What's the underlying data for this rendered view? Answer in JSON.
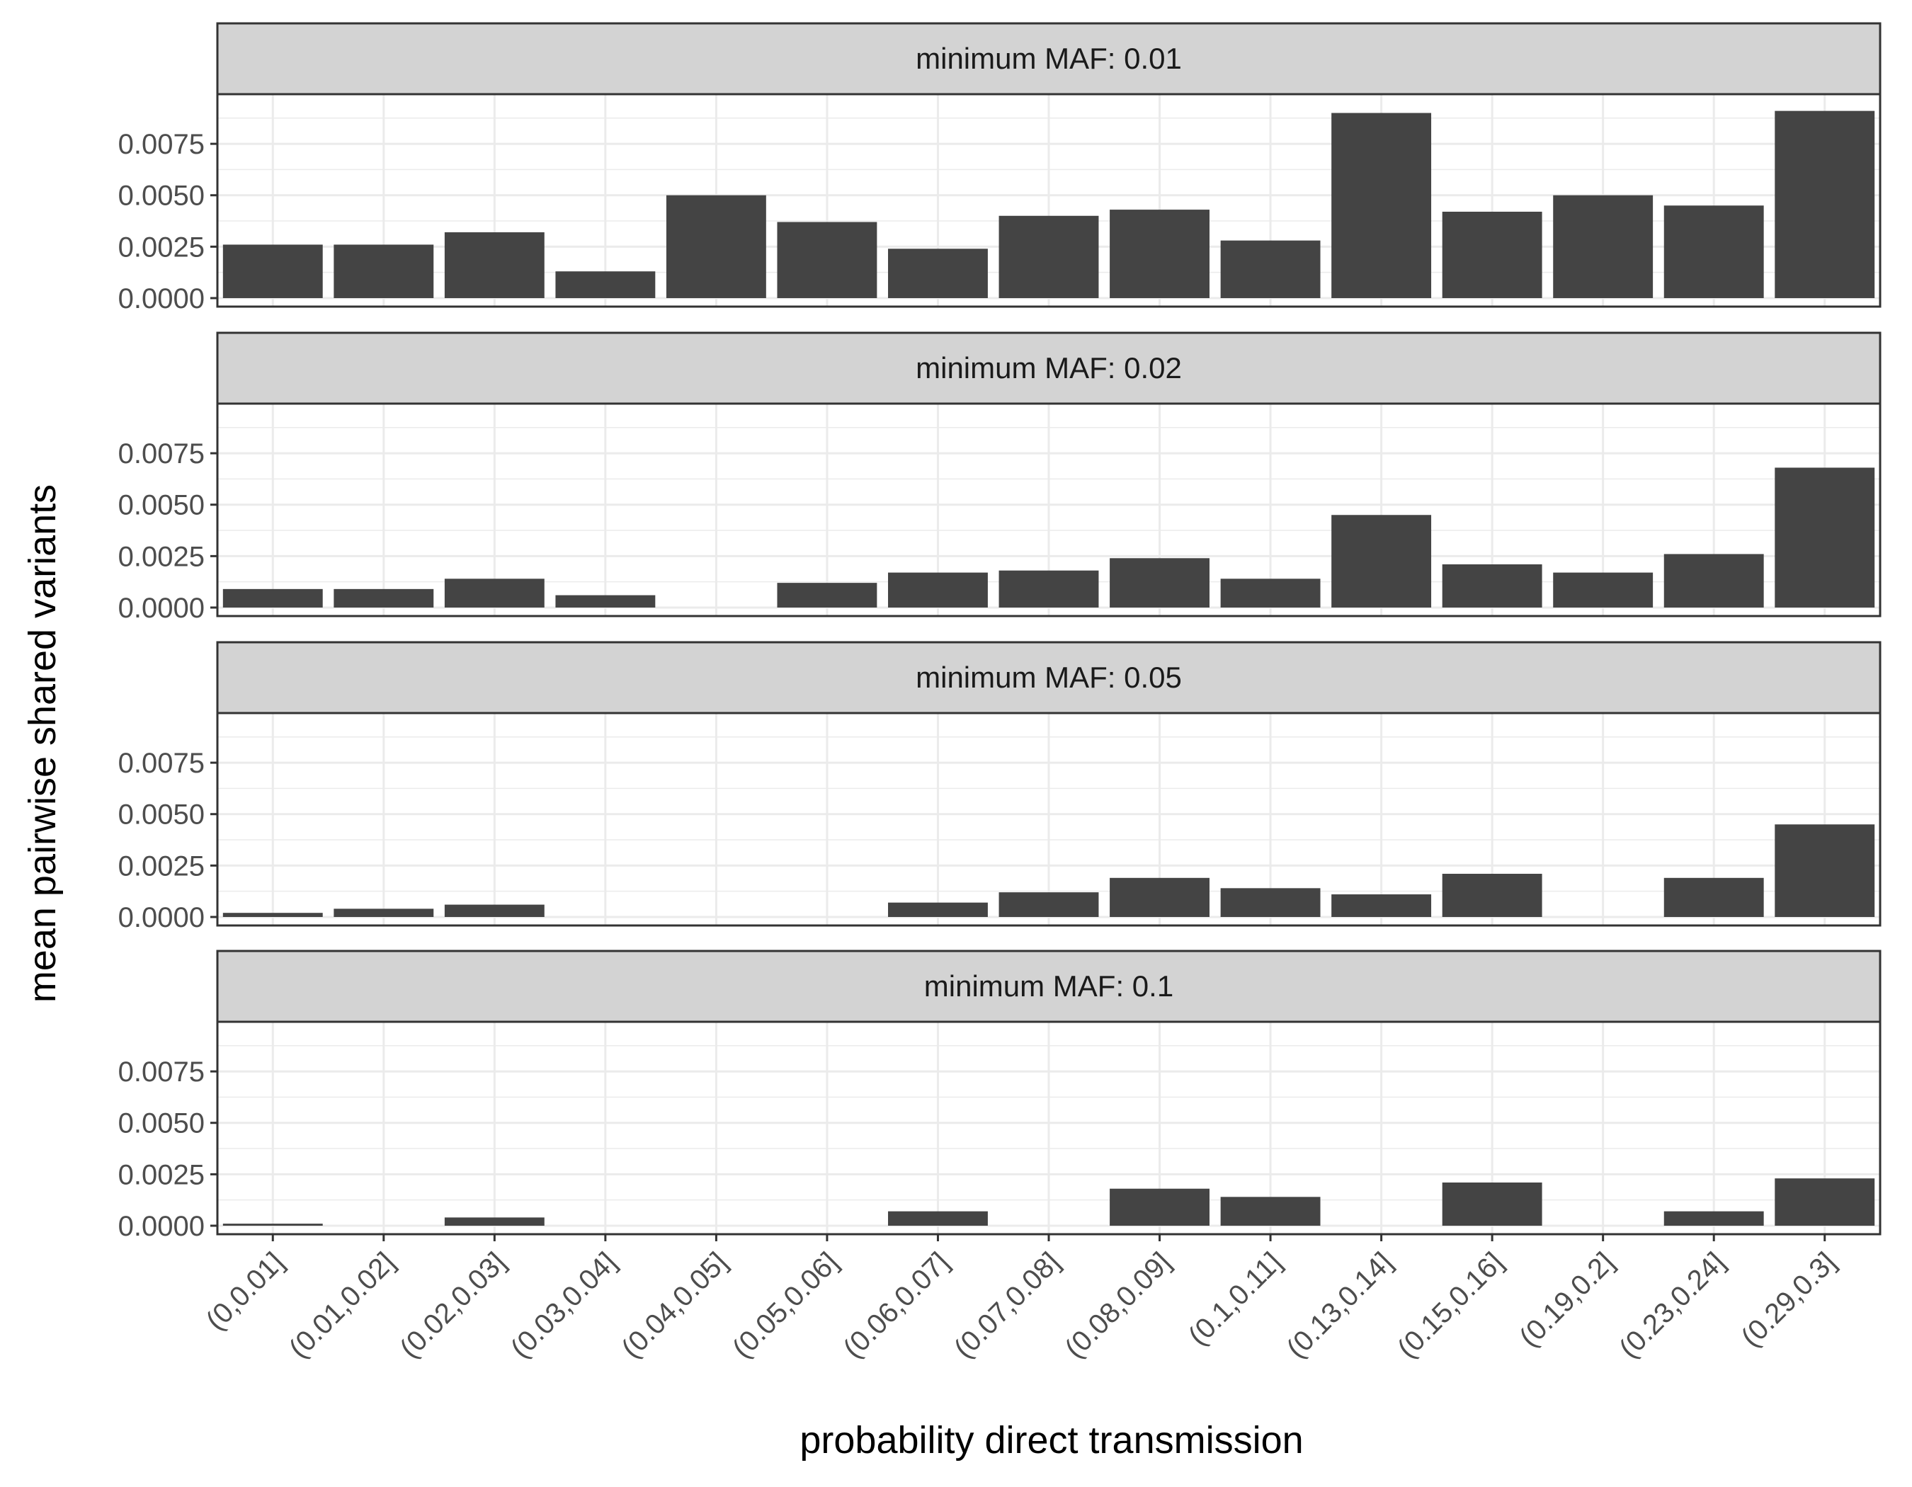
{
  "chart_data": {
    "type": "bar",
    "xlabel": "probability direct transmission",
    "ylabel": "mean pairwise shared variants",
    "ylim": [
      0,
      0.0095
    ],
    "yticks": [
      "0.0000",
      "0.0025",
      "0.0050",
      "0.0075"
    ],
    "categories": [
      "(0,0.01]",
      "(0.01,0.02]",
      "(0.02,0.03]",
      "(0.03,0.04]",
      "(0.04,0.05]",
      "(0.05,0.06]",
      "(0.06,0.07]",
      "(0.07,0.08]",
      "(0.08,0.09]",
      "(0.1,0.11]",
      "(0.13,0.14]",
      "(0.15,0.16]",
      "(0.19,0.2]",
      "(0.23,0.24]",
      "(0.29,0.3]"
    ],
    "grid": true,
    "bar_color": "#444444",
    "strip_color": "#d3d3d3",
    "panels": [
      {
        "label": "minimum MAF: 0.01",
        "values": [
          0.0026,
          0.0026,
          0.0032,
          0.0013,
          0.005,
          0.0037,
          0.0024,
          0.004,
          0.0043,
          0.0028,
          0.009,
          0.0042,
          0.005,
          0.0045,
          0.0091
        ]
      },
      {
        "label": "minimum MAF: 0.02",
        "values": [
          0.0009,
          0.0009,
          0.0014,
          0.0006,
          0.0,
          0.0012,
          0.0017,
          0.0018,
          0.0024,
          0.0014,
          0.0045,
          0.0021,
          0.0017,
          0.0026,
          0.0068
        ]
      },
      {
        "label": "minimum MAF: 0.05",
        "values": [
          0.0002,
          0.0004,
          0.0006,
          0.0,
          0.0,
          0.0,
          0.0007,
          0.0012,
          0.0019,
          0.0014,
          0.0011,
          0.0021,
          0.0,
          0.0019,
          0.0045
        ]
      },
      {
        "label": "minimum MAF: 0.1",
        "values": [
          0.0001,
          0.0,
          0.0004,
          0.0,
          0.0,
          0.0,
          0.0007,
          0.0,
          0.0018,
          0.0014,
          0.0,
          0.0021,
          0.0,
          0.0007,
          0.0023
        ]
      }
    ]
  }
}
